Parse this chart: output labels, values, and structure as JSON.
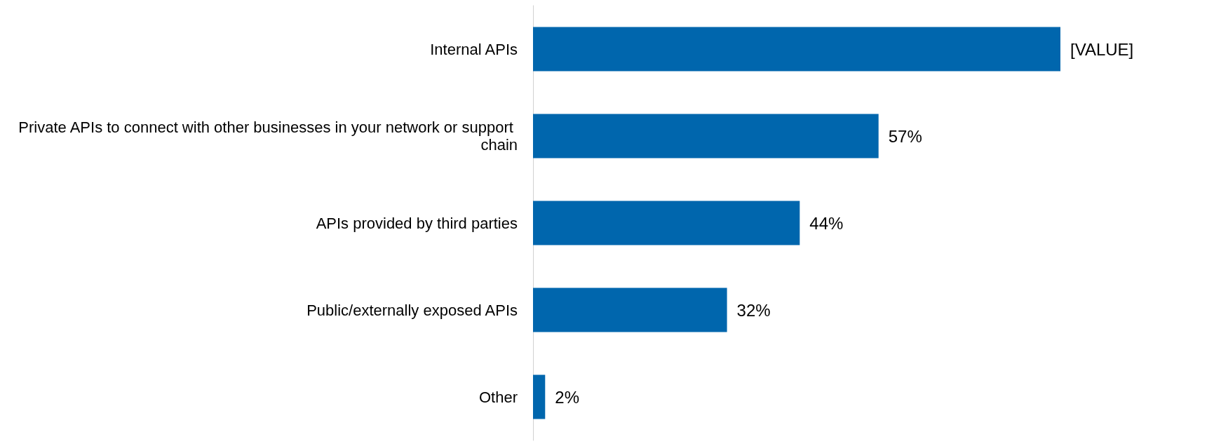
{
  "chart_data": {
    "type": "bar",
    "orientation": "horizontal",
    "categories": [
      "Internal APIs",
      "Private APIs to connect with other businesses in your network or support chain",
      "APIs provided by third parties",
      "Public/externally exposed APIs",
      "Other"
    ],
    "values": [
      87,
      57,
      44,
      32,
      2
    ],
    "value_labels": [
      "[VALUE]",
      "57%",
      "44%",
      "32%",
      "2%"
    ],
    "color": "#0066ad"
  }
}
